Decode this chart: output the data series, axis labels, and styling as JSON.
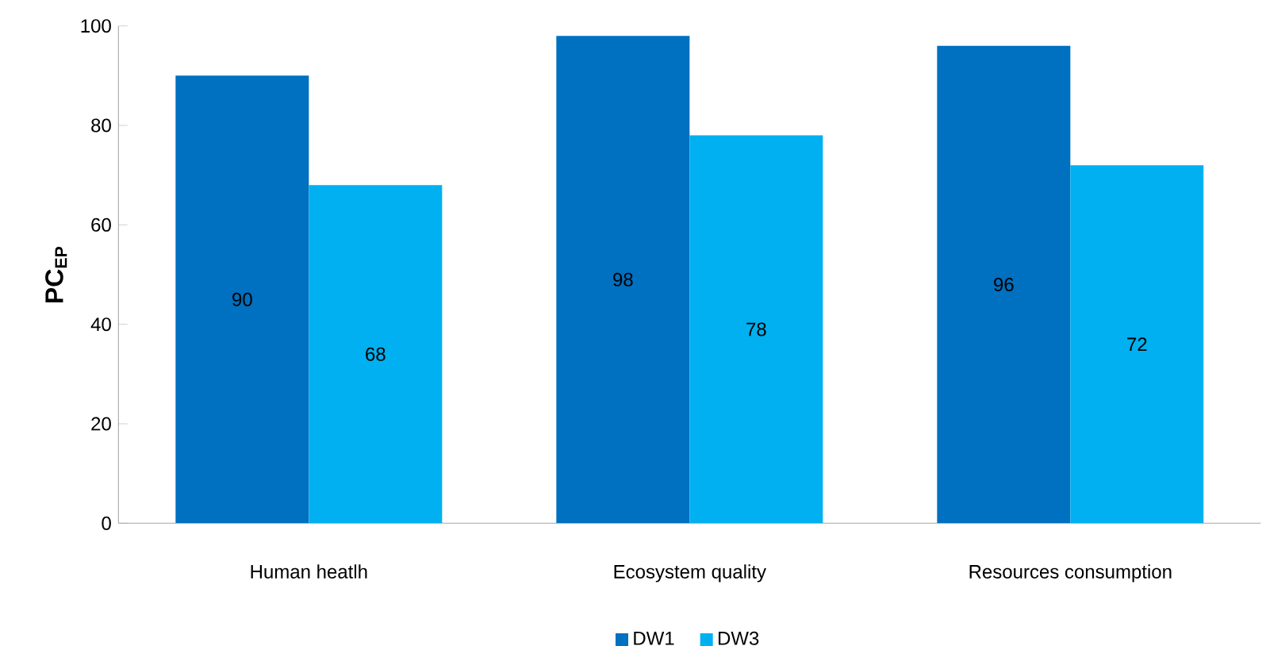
{
  "chart_data": {
    "type": "bar",
    "ylabel": "PC$_{EP}$",
    "categories": [
      "Human heatlh",
      "Ecosystem quality",
      "Resources consumption"
    ],
    "series": [
      {
        "name": "DW1",
        "color": "#0070c0",
        "values": [
          90,
          98,
          96
        ],
        "value_labels": [
          "90",
          "98",
          "96"
        ]
      },
      {
        "name": "DW3",
        "color": "#00b0f0",
        "values": [
          68,
          78,
          72
        ],
        "value_labels": [
          "68",
          "78",
          "72"
        ]
      }
    ],
    "ylim": [
      0,
      100
    ],
    "yticks": [
      0,
      20,
      40,
      60,
      80,
      100
    ],
    "grid": false,
    "legend": "bottom"
  }
}
